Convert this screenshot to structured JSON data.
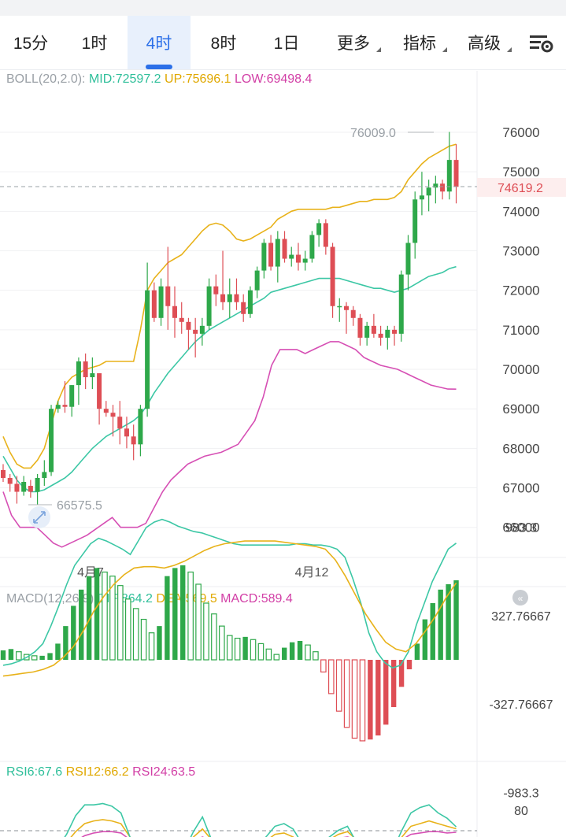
{
  "tabs": [
    {
      "label": "15分",
      "active": false
    },
    {
      "label": "1时",
      "active": false
    },
    {
      "label": "4时",
      "active": true
    },
    {
      "label": "8时",
      "active": false
    },
    {
      "label": "1日",
      "active": false
    },
    {
      "label": "更多",
      "dropdown": true
    },
    {
      "label": "指标",
      "dropdown": true
    },
    {
      "label": "高级",
      "dropdown": true
    }
  ],
  "settings_icon": "chart-settings-icon",
  "boll": {
    "label": "BOLL(20,2.0):",
    "mid": "MID:72597.2",
    "up": "UP:75696.1",
    "low": "LOW:69498.4"
  },
  "macd": {
    "label": "MACD(12,26,9)",
    "dif": "DIF:864.2",
    "dea": "DEA:569.5",
    "macd": "MACD:589.4"
  },
  "rsi": {
    "rsi6": "RSI6:67.6",
    "rsi12": "RSI12:66.2",
    "rsi24": "RSI24:63.5"
  },
  "price_axis": [
    "76000",
    "75000",
    "74000",
    "73000",
    "72000",
    "71000",
    "70000",
    "69000",
    "68000",
    "67000",
    "66000"
  ],
  "current_price": "74619.2",
  "high_marker": "76009.0",
  "low_marker": "66575.5",
  "date_labels": [
    "4月7",
    "4月12"
  ],
  "macd_axis": [
    "983.3",
    "327.76667",
    "-327.76667",
    "-983.3"
  ],
  "rsi_axis": [
    "80"
  ],
  "colors": {
    "up": "#2ea84a",
    "down": "#de4e55",
    "mid": "#3cc7a5",
    "upper": "#e8b21a",
    "lower": "#d64fb4",
    "accent": "#2b6fe8"
  },
  "chart_data": {
    "type": "candlestick",
    "ohlc": [
      [
        67450,
        67600,
        67150,
        67250
      ],
      [
        67250,
        67350,
        66900,
        67100
      ],
      [
        67100,
        67300,
        66600,
        66900
      ],
      [
        66900,
        67300,
        66800,
        67150
      ],
      [
        67050,
        67200,
        66750,
        66900
      ],
      [
        66900,
        67350,
        66575.5,
        67250
      ],
      [
        67250,
        67700,
        67050,
        67400
      ],
      [
        67400,
        69100,
        67300,
        69000
      ],
      [
        69000,
        69200,
        68900,
        69100
      ],
      [
        69100,
        69700,
        68900,
        69050
      ],
      [
        69050,
        69600,
        68800,
        69600
      ],
      [
        69600,
        70300,
        69100,
        70200
      ],
      [
        70200,
        70400,
        69500,
        69800
      ],
      [
        69800,
        70300,
        69500,
        69900
      ],
      [
        69900,
        69900,
        68600,
        69000
      ],
      [
        69000,
        69200,
        68800,
        68900
      ],
      [
        68900,
        69100,
        68300,
        68800
      ],
      [
        68800,
        69200,
        68100,
        68500
      ],
      [
        68500,
        68800,
        68000,
        68300
      ],
      [
        68300,
        68600,
        67700,
        68100
      ],
      [
        68100,
        69100,
        67800,
        69000
      ],
      [
        69000,
        72700,
        68800,
        72000
      ],
      [
        72000,
        72200,
        71200,
        71300
      ],
      [
        71300,
        72300,
        71100,
        72100
      ],
      [
        72100,
        73100,
        71000,
        71600
      ],
      [
        71600,
        72100,
        70800,
        71300
      ],
      [
        71300,
        71700,
        70900,
        71200
      ],
      [
        71200,
        71300,
        70500,
        71000
      ],
      [
        71000,
        71300,
        70300,
        70900
      ],
      [
        70900,
        71300,
        70600,
        71100
      ],
      [
        71100,
        72300,
        71000,
        72100
      ],
      [
        72100,
        72400,
        71600,
        71900
      ],
      [
        71900,
        73000,
        71500,
        71700
      ],
      [
        71700,
        72300,
        71300,
        71900
      ],
      [
        71900,
        72300,
        71500,
        71700
      ],
      [
        71700,
        71900,
        71200,
        71400
      ],
      [
        71400,
        72100,
        71300,
        72000
      ],
      [
        72000,
        72600,
        71800,
        72500
      ],
      [
        72500,
        73300,
        72300,
        73200
      ],
      [
        73200,
        73400,
        72500,
        72600
      ],
      [
        72600,
        73500,
        72200,
        73300
      ],
      [
        73300,
        73500,
        72700,
        72800
      ],
      [
        72800,
        73100,
        72600,
        72900
      ],
      [
        72900,
        73200,
        72500,
        72700
      ],
      [
        72700,
        73000,
        72500,
        72800
      ],
      [
        72800,
        73500,
        72700,
        73400
      ],
      [
        73400,
        73800,
        73100,
        73700
      ],
      [
        73700,
        73800,
        72900,
        73100
      ],
      [
        73100,
        73200,
        71300,
        71600
      ],
      [
        71600,
        71800,
        71200,
        71600
      ],
      [
        71600,
        71700,
        70900,
        71500
      ],
      [
        71500,
        71600,
        71100,
        71300
      ],
      [
        71300,
        71400,
        70600,
        70800
      ],
      [
        70800,
        71200,
        70600,
        71100
      ],
      [
        71100,
        71400,
        70800,
        70900
      ],
      [
        70900,
        71100,
        70600,
        70800
      ],
      [
        70800,
        71100,
        70500,
        71000
      ],
      [
        71000,
        71100,
        70600,
        70900
      ],
      [
        70900,
        72500,
        70700,
        72400
      ],
      [
        72400,
        73400,
        72000,
        73200
      ],
      [
        73200,
        74500,
        72800,
        74300
      ],
      [
        74300,
        75000,
        73900,
        74400
      ],
      [
        74400,
        74800,
        74000,
        74600
      ],
      [
        74600,
        74900,
        74200,
        74700
      ],
      [
        74700,
        74800,
        74300,
        74500
      ],
      [
        74500,
        76009,
        74300,
        75300
      ],
      [
        75300,
        75700,
        74200,
        74619.2
      ]
    ],
    "boll_mid": [
      67800,
      67500,
      67200,
      67000,
      66900,
      66900,
      66950,
      67050,
      67150,
      67250,
      67400,
      67600,
      67800,
      68000,
      68150,
      68300,
      68400,
      68500,
      68600,
      68700,
      68850,
      69100,
      69400,
      69650,
      69900,
      70100,
      70300,
      70500,
      70700,
      70850,
      71000,
      71100,
      71200,
      71300,
      71400,
      71500,
      71600,
      71700,
      71800,
      71950,
      72000,
      72050,
      72100,
      72150,
      72200,
      72250,
      72300,
      72300,
      72300,
      72300,
      72250,
      72200,
      72150,
      72100,
      72050,
      72050,
      72000,
      71950,
      72000,
      72050,
      72150,
      72250,
      72350,
      72400,
      72450,
      72550,
      72597.2
    ],
    "boll_up": [
      68300,
      67900,
      67600,
      67500,
      67500,
      67700,
      68000,
      68600,
      69200,
      69600,
      69800,
      69900,
      70000,
      70050,
      70100,
      70200,
      70200,
      70200,
      70200,
      70200,
      71000,
      72000,
      72300,
      72500,
      72700,
      72800,
      72900,
      73100,
      73300,
      73500,
      73650,
      73700,
      73650,
      73500,
      73300,
      73250,
      73300,
      73400,
      73500,
      73600,
      73800,
      73900,
      74000,
      74050,
      74050,
      74050,
      74050,
      74050,
      74100,
      74100,
      74150,
      74200,
      74250,
      74250,
      74300,
      74300,
      74300,
      74350,
      74500,
      74800,
      75000,
      75200,
      75350,
      75450,
      75550,
      75650,
      75696.1
    ],
    "boll_low": [
      66900,
      66300,
      66000,
      66000,
      66000,
      65800,
      65600,
      65500,
      65600,
      65700,
      65800,
      65950,
      66100,
      66250,
      66000,
      66000,
      66000,
      66100,
      66500,
      66900,
      67200,
      67400,
      67600,
      67700,
      67800,
      67850,
      67900,
      68000,
      68100,
      68400,
      68700,
      69300,
      70100,
      70500,
      70500,
      70500,
      70400,
      70500,
      70600,
      70700,
      70700,
      70600,
      70500,
      70300,
      70200,
      70100,
      70050,
      70000,
      69900,
      69800,
      69700,
      69600,
      69550,
      69500,
      69498.4
    ],
    "macd_hist": [
      70,
      80,
      60,
      40,
      30,
      30,
      50,
      120,
      250,
      400,
      520,
      620,
      680,
      650,
      620,
      550,
      450,
      380,
      300,
      200,
      250,
      620,
      680,
      700,
      650,
      560,
      420,
      340,
      250,
      180,
      160,
      170,
      150,
      120,
      80,
      40,
      90,
      130,
      140,
      110,
      60,
      -90,
      -250,
      -380,
      -500,
      -580,
      -600,
      -590,
      -560,
      -480,
      -350,
      -200,
      -70,
      120,
      300,
      420,
      520,
      560,
      589.4
    ],
    "macd_dif": [
      -40,
      -30,
      -10,
      20,
      60,
      120,
      250,
      400,
      560,
      700,
      780,
      860,
      900,
      880,
      850,
      820,
      780,
      880,
      980,
      1020,
      1040,
      1020,
      990,
      970,
      950,
      940,
      920,
      900,
      880,
      860,
      850,
      850,
      850,
      850,
      850,
      850,
      850,
      860,
      860,
      850,
      850,
      840,
      820,
      760,
      600,
      420,
      200,
      60,
      -20,
      -60,
      -40,
      60,
      260,
      420,
      580,
      700,
      820,
      864.2
    ],
    "macd_dea": [
      -120,
      -110,
      -100,
      -90,
      -70,
      -40,
      20,
      100,
      220,
      360,
      470,
      560,
      630,
      680,
      690,
      690,
      680,
      700,
      730,
      770,
      810,
      840,
      860,
      870,
      880,
      880,
      880,
      880,
      870,
      860,
      850,
      840,
      820,
      740,
      620,
      480,
      340,
      230,
      130,
      80,
      60,
      120,
      220,
      330,
      460,
      569.5
    ],
    "rsi6": [
      38,
      40,
      35,
      32,
      38,
      45,
      52,
      62,
      76,
      84,
      84,
      85,
      83,
      78,
      60,
      52,
      48,
      44,
      41,
      40,
      50,
      64,
      75,
      58,
      52,
      50,
      48,
      46,
      55,
      60,
      68,
      70,
      66,
      55,
      52,
      54,
      60,
      65,
      68,
      56,
      52,
      48,
      46,
      50,
      65,
      78,
      82,
      84,
      78,
      74,
      67.6
    ],
    "rsi12": [
      40,
      42,
      40,
      38,
      40,
      45,
      50,
      56,
      64,
      70,
      72,
      73,
      72,
      70,
      60,
      55,
      52,
      50,
      48,
      47,
      52,
      60,
      66,
      58,
      54,
      52,
      50,
      49,
      54,
      57,
      62,
      63,
      60,
      55,
      53,
      54,
      58,
      62,
      64,
      58,
      55,
      52,
      50,
      52,
      60,
      68,
      70,
      72,
      70,
      68,
      66.2
    ],
    "rsi24": [
      42,
      43,
      42,
      41,
      42,
      45,
      48,
      52,
      57,
      61,
      63,
      64,
      64,
      63,
      58,
      55,
      54,
      53,
      52,
      51,
      53,
      57,
      60,
      57,
      55,
      54,
      53,
      52,
      54,
      56,
      58,
      59,
      58,
      56,
      55,
      55,
      57,
      59,
      60,
      58,
      56,
      55,
      54,
      55,
      58,
      62,
      63,
      64,
      64,
      63,
      63.5
    ]
  }
}
